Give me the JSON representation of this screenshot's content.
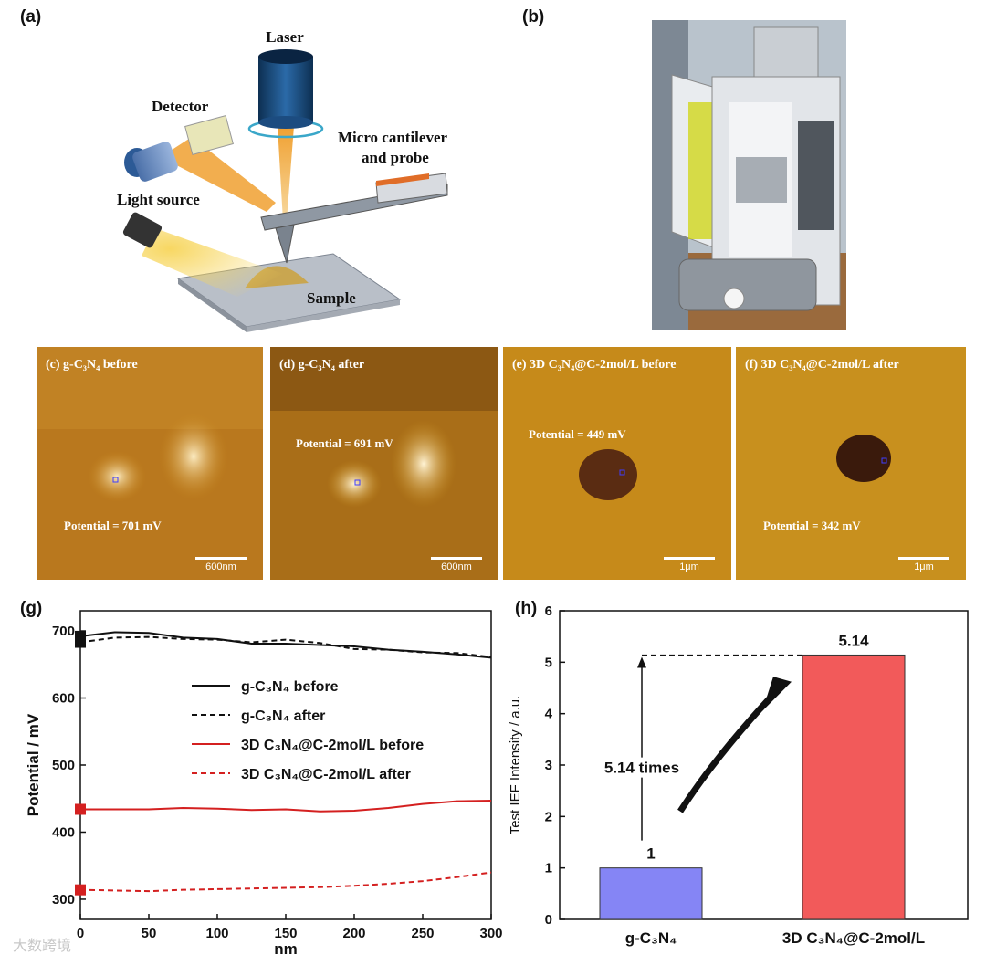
{
  "panel_labels": {
    "a": "(a)",
    "b": "(b)",
    "g": "(g)",
    "h": "(h)"
  },
  "schematic": {
    "laser": "Laser",
    "detector": "Detector",
    "cantilever_line1": "Micro cantilever",
    "cantilever_line2": "and probe",
    "light_source": "Light source",
    "sample": "Sample"
  },
  "kpfm_images": [
    {
      "title": "(c)  g-C₃N₄  before",
      "potential": "Potential = 701 mV",
      "scale": "600nm"
    },
    {
      "title": "(d)  g-C₃N₄  after",
      "potential": "Potential = 691 mV",
      "scale": "600nm"
    },
    {
      "title": "(e)  3D C₃N₄@C-2mol/L  before",
      "potential": "Potential = 449 mV",
      "scale": "1μm"
    },
    {
      "title": "(f)  3D C₃N₄@C-2mol/L  after",
      "potential": "Potential = 342 mV",
      "scale": "1μm"
    }
  ],
  "watermark": "大数跨境",
  "colors": {
    "black": "#111111",
    "red": "#d42020",
    "blue_bar": "#8585f5",
    "red_bar": "#f25a5a"
  },
  "chart_data": [
    {
      "type": "line",
      "xlabel": "nm",
      "ylabel": "Potential / mV",
      "xlim": [
        0,
        300
      ],
      "ylim": [
        270,
        730
      ],
      "xticks": [
        0,
        50,
        100,
        150,
        200,
        250,
        300
      ],
      "yticks": [
        300,
        400,
        500,
        600,
        700
      ],
      "legend_position": "center",
      "x": [
        0,
        25,
        50,
        75,
        100,
        125,
        150,
        175,
        200,
        225,
        250,
        275,
        300
      ],
      "series": [
        {
          "name": "g-C₃N₄ before",
          "style": "solid",
          "color": "#111111",
          "marker_value": 692,
          "values": [
            692,
            698,
            697,
            690,
            688,
            681,
            681,
            679,
            677,
            672,
            669,
            665,
            660
          ]
        },
        {
          "name": "g-C₃N₄ after",
          "style": "dashed",
          "color": "#111111",
          "marker_value": 683,
          "values": [
            683,
            690,
            691,
            688,
            687,
            683,
            687,
            682,
            673,
            672,
            668,
            667,
            661
          ]
        },
        {
          "name": "3D C₃N₄@C-2mol/L before",
          "style": "solid",
          "color": "#d42020",
          "marker_value": 434,
          "values": [
            434,
            434,
            434,
            436,
            435,
            433,
            434,
            431,
            432,
            436,
            442,
            446,
            447
          ]
        },
        {
          "name": "3D C₃N₄@C-2mol/L after",
          "style": "dashed",
          "color": "#d42020",
          "marker_value": 314,
          "values": [
            314,
            313,
            312,
            314,
            315,
            316,
            317,
            318,
            320,
            323,
            327,
            333,
            340
          ]
        }
      ]
    },
    {
      "type": "bar",
      "ylabel": "Test IEF Intensity / a.u.",
      "ylim": [
        0,
        6
      ],
      "yticks": [
        0,
        1,
        2,
        3,
        4,
        5,
        6
      ],
      "categories": [
        "g-C₃N₄",
        "3D C₃N₄@C-2mol/L"
      ],
      "values": [
        1,
        5.14
      ],
      "value_labels": [
        "1",
        "5.14"
      ],
      "annotation": "5.14 times"
    }
  ]
}
